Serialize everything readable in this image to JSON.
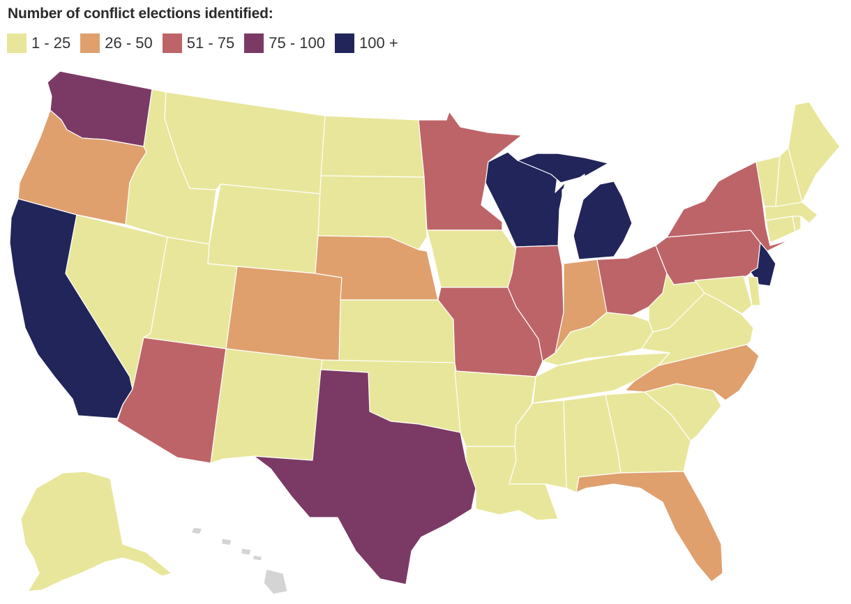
{
  "title": "Number of conflict elections identified:",
  "legend": [
    {
      "label": "1 - 25",
      "color": "#e8e69b"
    },
    {
      "label": "26 - 50",
      "color": "#dfa06e"
    },
    {
      "label": "51 - 75",
      "color": "#bd6468"
    },
    {
      "label": "75 - 100",
      "color": "#7b3a65"
    },
    {
      "label": "100 +",
      "color": "#22255a"
    }
  ],
  "no_data_color": "#d4d4d4",
  "states": {
    "WA": 3,
    "OR": 1,
    "CA": 4,
    "ID": 0,
    "NV": 0,
    "MT": 0,
    "WY": 0,
    "UT": 0,
    "AZ": 2,
    "CO": 1,
    "NM": 0,
    "ND": 0,
    "SD": 0,
    "NE": 1,
    "KS": 0,
    "OK": 0,
    "TX": 3,
    "MN": 2,
    "IA": 0,
    "MO": 2,
    "AR": 0,
    "LA": 0,
    "WI": 4,
    "IL": 2,
    "MI": 4,
    "IN": 1,
    "OH": 2,
    "KY": 0,
    "TN": 0,
    "MS": 0,
    "AL": 0,
    "GA": 0,
    "FL": 1,
    "SC": 0,
    "NC": 1,
    "VA": 0,
    "WV": 0,
    "PA": 2,
    "NY": 2,
    "NJ": 4,
    "DE": 0,
    "MD": 0,
    "CT": 0,
    "RI": 0,
    "MA": 0,
    "VT": 0,
    "NH": 0,
    "ME": 0,
    "AK": 0,
    "HI": null
  }
}
